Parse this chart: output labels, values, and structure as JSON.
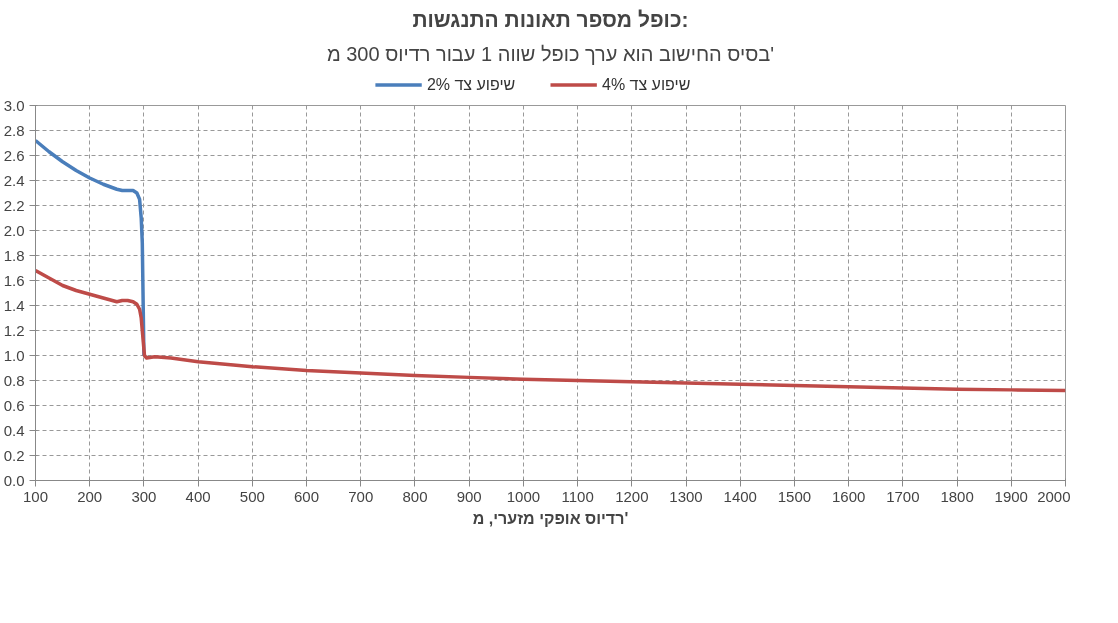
{
  "chart_data": {
    "type": "line",
    "title": "כופל מספר תאונות התנגשות:",
    "subtitle": "בסיס החישוב הוא ערך כופל שווה 1 עבור רדיוס 300 מ'",
    "xlabel": "רדיוס אופקי מזערי, מ'",
    "series": [
      {
        "name": "שיפוע צד 2%",
        "color": "#4a7ebb",
        "x": [
          100,
          125,
          150,
          175,
          200,
          225,
          250,
          260,
          270,
          280,
          287,
          292,
          295,
          297,
          298,
          299,
          300
        ],
        "values": [
          2.72,
          2.63,
          2.55,
          2.48,
          2.42,
          2.37,
          2.33,
          2.32,
          2.32,
          2.32,
          2.3,
          2.25,
          2.1,
          1.9,
          1.6,
          1.3,
          1.0
        ]
      },
      {
        "name": "שיפוע צד 4%",
        "color": "#be4b48",
        "x": [
          100,
          125,
          150,
          175,
          200,
          225,
          250,
          260,
          270,
          280,
          287,
          292,
          295,
          297,
          299,
          301,
          305,
          320,
          350,
          400,
          500,
          600,
          700,
          800,
          900,
          1000,
          1100,
          1200,
          1300,
          1400,
          1500,
          1600,
          1700,
          1800,
          1900,
          2000
        ],
        "values": [
          1.68,
          1.62,
          1.56,
          1.52,
          1.49,
          1.46,
          1.43,
          1.44,
          1.44,
          1.43,
          1.41,
          1.37,
          1.3,
          1.2,
          1.1,
          1.0,
          0.98,
          0.99,
          0.98,
          0.95,
          0.91,
          0.88,
          0.86,
          0.84,
          0.825,
          0.81,
          0.8,
          0.79,
          0.78,
          0.77,
          0.76,
          0.75,
          0.74,
          0.73,
          0.725,
          0.72
        ]
      }
    ],
    "xlim": [
      100,
      2000
    ],
    "xticks": [
      100,
      200,
      300,
      400,
      500,
      600,
      700,
      800,
      900,
      1000,
      1100,
      1200,
      1300,
      1400,
      1500,
      1600,
      1700,
      1800,
      1900,
      2000
    ],
    "ylim": [
      0,
      3
    ],
    "yticks": [
      {
        "value": 0,
        "label": "0.0"
      },
      0.2,
      0.4,
      0.6,
      0.8,
      {
        "value": 1,
        "label": "1.0"
      },
      1.2,
      1.4,
      1.6,
      1.8,
      {
        "value": 2,
        "label": "2.0"
      },
      2.2,
      2.4,
      2.6,
      2.8,
      {
        "value": 3,
        "label": "3.0"
      }
    ],
    "grid": true,
    "legend": "top",
    "line_style": "solid",
    "marker": "none"
  }
}
